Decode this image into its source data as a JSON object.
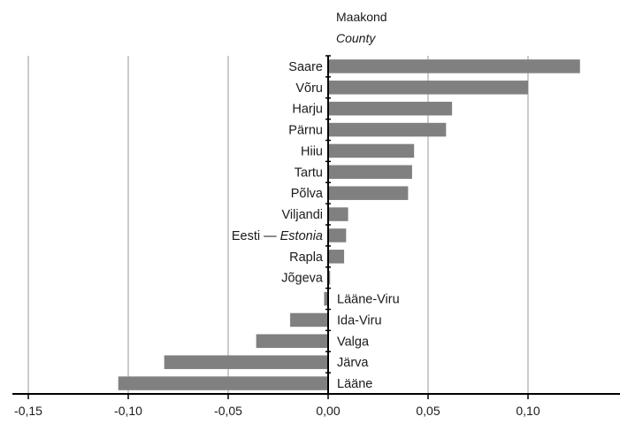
{
  "chart_data": {
    "type": "bar",
    "orientation": "horizontal",
    "axis_title_line1": "Maakond",
    "axis_title_line2": "County",
    "categories": [
      "Saare",
      "Võru",
      "Harju",
      "Pärnu",
      "Hiiu",
      "Tartu",
      "Põlva",
      "Viljandi",
      "Eesti — Estonia",
      "Rapla",
      "Jõgeva",
      "Lääne-Viru",
      "Ida-Viru",
      "Valga",
      "Järva",
      "Lääne"
    ],
    "category_parts": {
      "Eesti — Estonia": {
        "plain": "Eesti — ",
        "italic": "Estonia"
      }
    },
    "values": [
      0.126,
      0.1,
      0.062,
      0.059,
      0.043,
      0.042,
      0.04,
      0.01,
      0.009,
      0.008,
      0.001,
      -0.002,
      -0.019,
      -0.036,
      -0.082,
      -0.105
    ],
    "xlim": [
      -0.15,
      0.15
    ],
    "xticks": [
      -0.15,
      -0.1,
      -0.05,
      0.0,
      0.05,
      0.1
    ],
    "xtick_labels": [
      "-0,15",
      "-0,10",
      "-0,05",
      "0,00",
      "0,05",
      "0,10"
    ],
    "grid": "vertical",
    "bar_color": "#808080"
  }
}
